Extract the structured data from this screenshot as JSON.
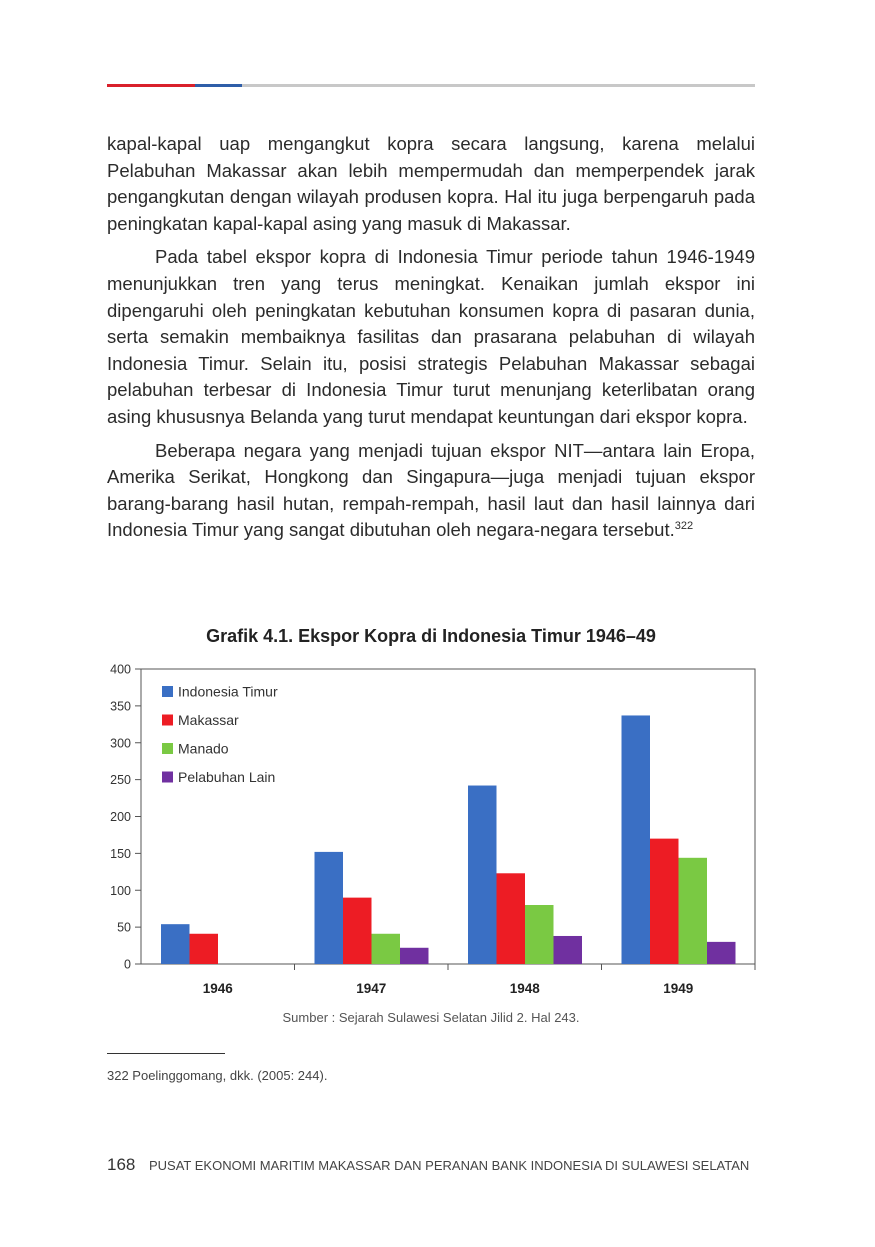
{
  "header": {
    "rule_colors": [
      "#d9202b",
      "#2f5ea8",
      "#c8c8c8"
    ]
  },
  "body": {
    "p1": "kapal-kapal uap mengangkut kopra secara langsung, karena melalui Pelabuhan Makassar akan lebih mempermudah dan memperpendek jarak pengangkutan dengan wilayah produsen kopra. Hal itu juga berpengaruh pada peningkatan kapal-kapal asing yang masuk di Makassar.",
    "p2": "Pada tabel ekspor kopra di Indonesia Timur periode tahun 1946-1949 menunjukkan tren yang terus meningkat. Kenaikan jumlah ekspor ini dipengaruhi oleh peningkatan kebutuhan konsumen kopra di pasaran dunia, serta semakin membaiknya fasilitas dan prasarana pelabuhan di wilayah Indonesia Timur. Selain itu, posisi strategis Pelabuhan Makassar sebagai pelabuhan terbesar di Indonesia Timur turut menunjang keterlibatan orang asing khususnya Belanda yang turut mendapat keuntungan dari ekspor kopra.",
    "p3": "Beberapa negara yang menjadi tujuan ekspor NIT—antara lain Eropa, Amerika Serikat, Hongkong dan Singapura—juga menjadi tujuan ekspor barang-barang hasil hutan, rempah-rempah, hasil laut dan hasil lainnya dari Indonesia Timur yang sangat dibutuhan oleh negara-negara tersebut.",
    "p3_note_ref": "322"
  },
  "chart_data": {
    "type": "bar",
    "title": "Grafik 4.1. Ekspor Kopra di Indonesia Timur 1946–49",
    "categories": [
      "1946",
      "1947",
      "1948",
      "1949"
    ],
    "series": [
      {
        "name": "Indonesia Timur",
        "color": "#3a6fc4",
        "values": [
          54,
          152,
          242,
          337
        ]
      },
      {
        "name": "Makassar",
        "color": "#ed1c24",
        "values": [
          41,
          90,
          123,
          170
        ]
      },
      {
        "name": "Manado",
        "color": "#7ac943",
        "values": [
          0,
          41,
          80,
          144
        ]
      },
      {
        "name": "Pelabuhan Lain",
        "color": "#7030a0",
        "values": [
          0,
          22,
          38,
          30
        ]
      }
    ],
    "ylim": [
      0,
      400
    ],
    "yticks": [
      "0",
      "50",
      "100",
      "150",
      "200",
      "250",
      "300",
      "350",
      "400"
    ],
    "legend_position": "top-left",
    "grid": false
  },
  "source": "Sumber : Sejarah Sulawesi Selatan Jilid 2. Hal 243.",
  "footnote": "322 Poelinggomang, dkk. (2005: 244).",
  "footer": {
    "page_number": "168",
    "running_title": "PUSAT EKONOMI MARITIM MAKASSAR DAN PERANAN BANK INDONESIA DI SULAWESI SELATAN"
  }
}
